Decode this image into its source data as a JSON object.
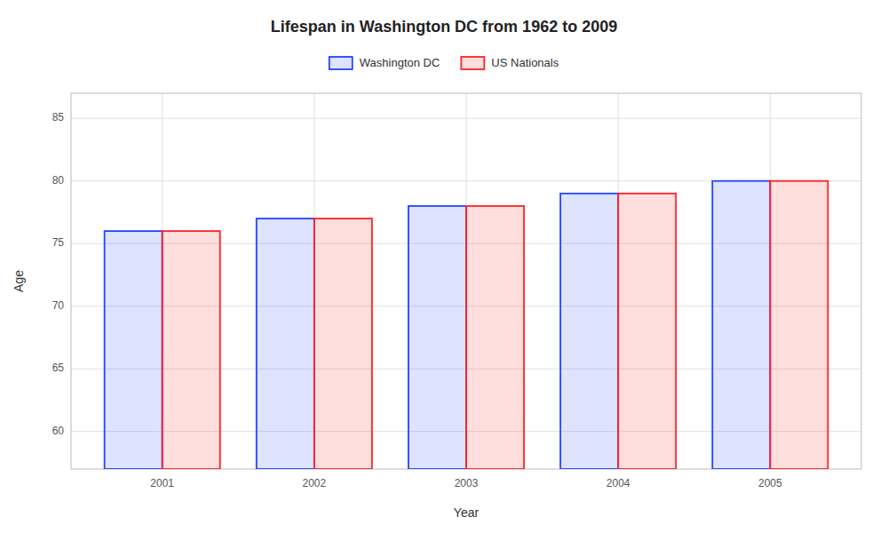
{
  "chart_data": {
    "type": "bar",
    "title": "Lifespan in Washington DC from 1962 to 2009",
    "x_label": "Year",
    "y_label": "Age",
    "categories": [
      "2001",
      "2002",
      "2003",
      "2004",
      "2005"
    ],
    "series": [
      {
        "name": "Washington DC",
        "color": "#2244ff",
        "values": [
          76,
          77,
          78,
          79,
          80
        ]
      },
      {
        "name": "US Nationals",
        "color": "#ff2222",
        "values": [
          76,
          77,
          78,
          79,
          80
        ]
      }
    ],
    "ylim": [
      57,
      87
    ],
    "yticks": [
      60,
      65,
      70,
      75,
      80,
      85
    ],
    "grid": true,
    "legend": "top"
  }
}
